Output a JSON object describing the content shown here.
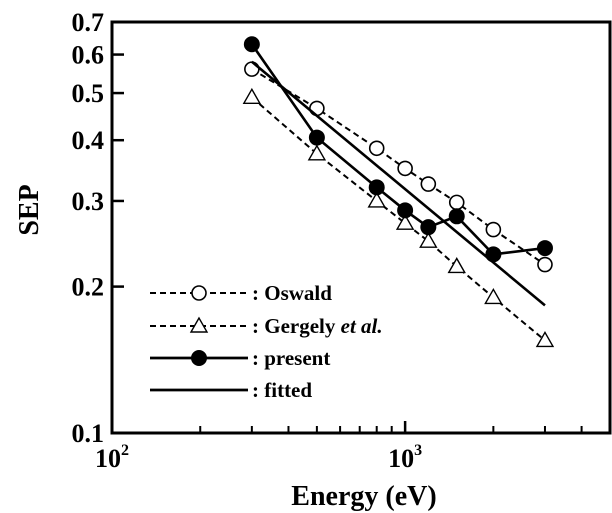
{
  "chart_data": {
    "type": "line",
    "xlabel": "Energy (eV)",
    "ylabel": "SEP",
    "xscale": "log",
    "yscale": "log",
    "xlim": [
      100,
      5000
    ],
    "ylim": [
      0.1,
      0.7
    ],
    "x_ticks": [
      {
        "value": 100,
        "base": "10",
        "exp": "2"
      },
      {
        "value": 1000,
        "base": "10",
        "exp": "3"
      }
    ],
    "y_ticks": [
      {
        "value": 0.1,
        "label": "0.1"
      },
      {
        "value": 0.2,
        "label": "0.2"
      },
      {
        "value": 0.3,
        "label": "0.3"
      },
      {
        "value": 0.4,
        "label": "0.4"
      },
      {
        "value": 0.5,
        "label": "0.5"
      },
      {
        "value": 0.6,
        "label": "0.6"
      },
      {
        "value": 0.7,
        "label": "0.7"
      }
    ],
    "grid": false,
    "legend_position": "bottom-left",
    "series": [
      {
        "name": ": Oswald",
        "marker": "open-circle",
        "line": "dashed",
        "x": [
          300,
          500,
          800,
          1000,
          1200,
          1500,
          2000,
          3000
        ],
        "y": [
          0.56,
          0.465,
          0.385,
          0.35,
          0.325,
          0.298,
          0.262,
          0.222
        ]
      },
      {
        "name": ": Gergely et al.",
        "marker": "open-triangle",
        "line": "dashed",
        "x": [
          300,
          500,
          800,
          1000,
          1200,
          1500,
          2000,
          3000
        ],
        "y": [
          0.49,
          0.375,
          0.3,
          0.27,
          0.248,
          0.22,
          0.19,
          0.155
        ]
      },
      {
        "name": ": present",
        "marker": "filled-circle",
        "line": "solid",
        "x": [
          300,
          500,
          800,
          1000,
          1200,
          1500,
          2000,
          3000
        ],
        "y": [
          0.63,
          0.405,
          0.32,
          0.287,
          0.265,
          0.279,
          0.233,
          0.24
        ]
      },
      {
        "name": ": fitted",
        "marker": "none",
        "line": "solid",
        "x": [
          300,
          3000
        ],
        "y": [
          0.58,
          0.183
        ]
      }
    ],
    "colors": {
      "axis": "#000000",
      "series": "#000000",
      "background": "#ffffff"
    }
  }
}
